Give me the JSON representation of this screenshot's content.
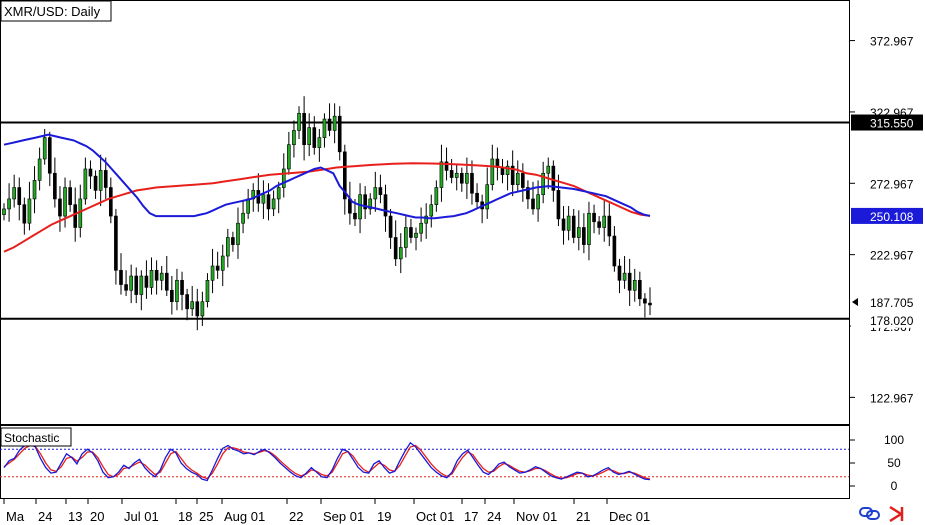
{
  "chart_data": [
    {
      "type": "candlestick",
      "title": "XMR/USD: Daily",
      "y_ticks": [
        372.967,
        322.967,
        272.967,
        222.967,
        172.967,
        122.967
      ],
      "ylim": [
        105,
        400
      ],
      "x_ticks": [
        "Ma",
        "24",
        "13",
        "20",
        "Jul 01",
        "18",
        "25",
        "Aug 01",
        "22",
        "Sep 01",
        "19",
        "Oct 01",
        "17",
        "24",
        "Nov 01",
        "21",
        "Dec 01"
      ],
      "support_line": 178.02,
      "resistance_line": 315.55,
      "price_labels": [
        {
          "value": "315.550",
          "role": "resistance"
        },
        {
          "value": "250.108",
          "role": "moving-average"
        },
        {
          "value": "187.705",
          "role": "last-price"
        },
        {
          "value": "178.020",
          "role": "support"
        }
      ],
      "closes": [
        255,
        262,
        270,
        258,
        245,
        262,
        275,
        290,
        305,
        280,
        262,
        250,
        270,
        258,
        242,
        262,
        283,
        278,
        268,
        282,
        270,
        250,
        212,
        202,
        198,
        208,
        195,
        208,
        200,
        212,
        205,
        210,
        198,
        190,
        205,
        195,
        185,
        190,
        180,
        190,
        205,
        215,
        212,
        222,
        235,
        230,
        245,
        252,
        262,
        268,
        259,
        265,
        255,
        262,
        270,
        283,
        300,
        310,
        322,
        300,
        312,
        298,
        305,
        318,
        310,
        320,
        295,
        262,
        252,
        248,
        265,
        255,
        262,
        270,
        265,
        250,
        235,
        220,
        228,
        242,
        235,
        238,
        245,
        250,
        258,
        270,
        288,
        282,
        277,
        280,
        273,
        280,
        266,
        260,
        255,
        272,
        290,
        284,
        279,
        285,
        272,
        280,
        270,
        262,
        255,
        265,
        280,
        285,
        268,
        248,
        240,
        250,
        235,
        242,
        230,
        252,
        246,
        242,
        250,
        236,
        215,
        205,
        210,
        198,
        205,
        192,
        189,
        187.7
      ],
      "sma_blue": [
        300,
        301,
        302,
        303,
        304,
        305,
        306,
        307,
        306,
        305,
        304,
        303,
        301,
        299,
        296,
        292,
        288,
        283,
        278,
        273,
        268,
        263,
        257,
        252,
        250,
        250,
        250,
        250,
        250,
        250,
        250,
        251,
        252,
        254,
        256,
        258,
        259,
        260,
        261,
        262,
        264,
        266,
        268,
        271,
        273,
        275,
        277,
        279,
        281,
        283,
        284,
        282,
        280,
        271,
        266,
        260,
        258,
        257,
        256,
        255,
        254,
        253,
        252,
        251,
        250,
        249,
        249,
        248.5,
        248.5,
        249,
        249.5,
        250,
        251,
        252,
        254,
        256,
        258,
        260,
        262,
        264,
        266,
        267,
        268,
        269,
        270,
        270.5,
        271,
        270.5,
        270,
        269.5,
        269,
        268,
        267,
        266,
        265,
        264,
        262,
        260,
        258,
        256,
        253,
        251,
        250.1
      ],
      "sma_red": [
        225,
        228,
        232,
        236,
        240,
        244,
        247,
        250,
        253,
        256,
        259,
        262,
        264,
        266,
        268,
        269,
        270,
        270.5,
        271,
        271.5,
        272,
        272.5,
        273,
        274,
        275,
        276,
        277,
        278,
        279,
        279.5,
        280,
        280.5,
        281,
        282,
        283,
        284,
        284.5,
        285,
        285.5,
        286,
        286.3,
        286.6,
        286.8,
        287,
        286.9,
        286.8,
        286.6,
        286.4,
        286.1,
        285.8,
        285.4,
        285,
        284.5,
        283.5,
        282.5,
        280,
        279,
        277,
        275,
        273,
        271,
        268,
        265,
        262,
        259,
        256,
        253,
        251,
        250.1
      ],
      "stochastic": {
        "label": "Stochastic",
        "levels": [
          80,
          20
        ],
        "axis_ticks": [
          100,
          50,
          0
        ],
        "k": [
          40,
          55,
          60,
          78,
          88,
          92,
          85,
          60,
          40,
          28,
          30,
          50,
          70,
          62,
          48,
          70,
          80,
          72,
          55,
          30,
          18,
          20,
          30,
          45,
          38,
          50,
          58,
          40,
          28,
          20,
          35,
          62,
          80,
          72,
          50,
          38,
          30,
          25,
          15,
          12,
          35,
          60,
          82,
          88,
          80,
          76,
          70,
          72,
          68,
          75,
          80,
          72,
          62,
          50,
          40,
          30,
          22,
          18,
          28,
          40,
          30,
          20,
          18,
          35,
          60,
          80,
          75,
          58,
          40,
          30,
          28,
          48,
          55,
          40,
          28,
          32,
          55,
          76,
          94,
          85,
          70,
          55,
          40,
          30,
          22,
          18,
          30,
          55,
          70,
          78,
          62,
          45,
          30,
          25,
          35,
          48,
          52,
          42,
          35,
          28,
          30,
          35,
          42,
          38,
          30,
          22,
          18,
          15,
          20,
          25,
          30,
          28,
          20,
          22,
          28,
          35,
          40,
          30,
          25,
          28,
          32,
          26,
          20,
          15,
          14
        ],
        "d": [
          42,
          50,
          58,
          70,
          82,
          88,
          86,
          70,
          50,
          35,
          32,
          42,
          60,
          63,
          54,
          62,
          74,
          74,
          62,
          42,
          25,
          20,
          25,
          38,
          40,
          46,
          52,
          46,
          35,
          25,
          30,
          50,
          70,
          75,
          60,
          45,
          35,
          28,
          20,
          16,
          28,
          48,
          70,
          83,
          83,
          80,
          74,
          72,
          70,
          73,
          77,
          74,
          66,
          55,
          45,
          35,
          27,
          22,
          26,
          35,
          32,
          25,
          22,
          30,
          50,
          70,
          75,
          65,
          48,
          36,
          30,
          40,
          50,
          45,
          35,
          32,
          45,
          65,
          85,
          88,
          78,
          63,
          48,
          36,
          27,
          21,
          26,
          45,
          62,
          74,
          68,
          52,
          38,
          30,
          32,
          42,
          49,
          45,
          38,
          32,
          30,
          33,
          38,
          38,
          33,
          26,
          20,
          17,
          18,
          22,
          27,
          28,
          24,
          22,
          25,
          30,
          36,
          33,
          28,
          27,
          30,
          28,
          23,
          18,
          15
        ]
      }
    }
  ]
}
